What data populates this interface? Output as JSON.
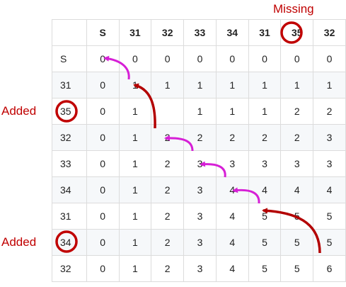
{
  "labels": {
    "missing": "Missing",
    "added_1": "Added",
    "added_2": "Added"
  },
  "table": {
    "corner": "",
    "col_headers": [
      "S",
      "31",
      "32",
      "33",
      "34",
      "31",
      "35",
      "32"
    ],
    "rows": [
      {
        "head": "S",
        "cells": [
          "0",
          "0",
          "0",
          "0",
          "0",
          "0",
          "0",
          "0"
        ]
      },
      {
        "head": "31",
        "cells": [
          "0",
          "1",
          "1",
          "1",
          "1",
          "1",
          "1",
          "1"
        ]
      },
      {
        "head": "35",
        "cells": [
          "0",
          "1",
          "",
          "1",
          "1",
          "1",
          "2",
          "2"
        ]
      },
      {
        "head": "32",
        "cells": [
          "0",
          "1",
          "2",
          "2",
          "2",
          "2",
          "2",
          "3"
        ]
      },
      {
        "head": "33",
        "cells": [
          "0",
          "1",
          "2",
          "3",
          "3",
          "3",
          "3",
          "3"
        ]
      },
      {
        "head": "34",
        "cells": [
          "0",
          "1",
          "2",
          "3",
          "4",
          "4",
          "4",
          "4"
        ]
      },
      {
        "head": "31",
        "cells": [
          "0",
          "1",
          "2",
          "3",
          "4",
          "5",
          "5",
          "5"
        ]
      },
      {
        "head": "34",
        "cells": [
          "0",
          "1",
          "2",
          "3",
          "4",
          "5",
          "5",
          "5"
        ]
      },
      {
        "head": "32",
        "cells": [
          "0",
          "1",
          "2",
          "3",
          "4",
          "5",
          "5",
          "6"
        ]
      }
    ]
  },
  "colors": {
    "highlight_red": "#c00000",
    "arrow_red": "#b30000",
    "arrow_magenta": "#d61fd6",
    "grid_border": "#dcdcdc",
    "stripe": "#f6f8fa"
  }
}
